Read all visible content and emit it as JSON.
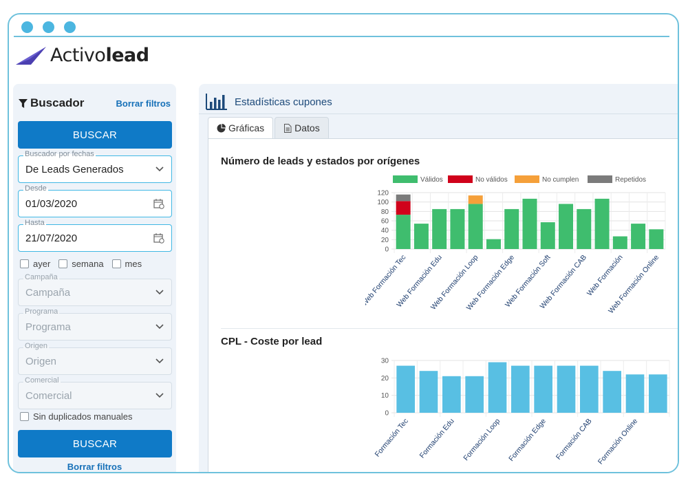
{
  "logo": {
    "light": "Activo",
    "bold": "lead"
  },
  "sidebar": {
    "title": "Buscador",
    "clear_link": "Borrar filtros",
    "search_button": "BUSCAR",
    "date_search": {
      "label": "Buscador por fechas",
      "value": "De Leads Generados"
    },
    "from": {
      "label": "Desde",
      "value": "01/03/2020"
    },
    "to": {
      "label": "Hasta",
      "value": "21/07/2020"
    },
    "quick": [
      "ayer",
      "semana",
      "mes"
    ],
    "campaign": {
      "label": "Campaña",
      "placeholder": "Campaña"
    },
    "program": {
      "label": "Programa",
      "placeholder": "Programa"
    },
    "origin": {
      "label": "Origen",
      "placeholder": "Origen"
    },
    "commercial": {
      "label": "Comercial",
      "placeholder": "Comercial"
    },
    "no_duplicates": "Sin duplicados manuales",
    "search_button_2": "BUSCAR",
    "clear_link_2": "Borrar filtros"
  },
  "main": {
    "title": "Estadísticas cupones",
    "tabs": [
      {
        "label": "Gráficas",
        "icon": "pie-chart-icon"
      },
      {
        "label": "Datos",
        "icon": "document-icon"
      }
    ]
  },
  "colors": {
    "validos": "#3fbd6e",
    "no_validos": "#d0021b",
    "no_cumplen": "#f5a03a",
    "repetidos": "#7b7b7b",
    "coste": "#58bfe3",
    "accent": "#0f7ac7"
  },
  "chart_data": [
    {
      "type": "bar",
      "stacked": true,
      "title": "Número de leads y estados por orígenes",
      "categories": [
        "Web Formación Tec",
        "",
        "Web Formación Edu",
        "",
        "Web Formación Loop",
        "",
        "Web Formación Edge",
        "",
        "Web Formación Soft",
        "",
        "Web Formación CAB",
        "",
        "Web Formación",
        "",
        "Web Formación Online"
      ],
      "series": [
        {
          "name": "Válidos",
          "values": [
            73,
            54,
            85,
            85,
            96,
            21,
            85,
            107,
            57,
            96,
            85,
            107,
            27,
            54,
            42
          ]
        },
        {
          "name": "No válidos",
          "values": [
            29,
            0,
            0,
            0,
            0,
            0,
            0,
            0,
            0,
            0,
            0,
            0,
            0,
            0,
            0
          ]
        },
        {
          "name": "No cumplen",
          "values": [
            0,
            0,
            0,
            0,
            18,
            0,
            0,
            0,
            0,
            0,
            0,
            0,
            0,
            0,
            0
          ]
        },
        {
          "name": "Repetidos",
          "values": [
            14,
            0,
            0,
            0,
            0,
            0,
            0,
            0,
            0,
            0,
            0,
            0,
            0,
            0,
            0
          ]
        }
      ],
      "ylim": [
        0,
        120
      ],
      "yticks": [
        0,
        20,
        40,
        60,
        80,
        100,
        120
      ],
      "legend": "top",
      "grid": true
    },
    {
      "type": "bar",
      "title": "CPL - Coste por lead",
      "categories": [
        "Formación Tec",
        "",
        "Formación Edu",
        "",
        "Formación Loop",
        "",
        "Formación Edge",
        "",
        "Formación CAB",
        "",
        "Formación Online",
        ""
      ],
      "series": [
        {
          "name": "Coste",
          "values": [
            27,
            24,
            21,
            21,
            29,
            27,
            27,
            27,
            27,
            24,
            22,
            22
          ]
        }
      ],
      "ylim": [
        0,
        30
      ],
      "yticks": [
        0,
        10,
        20,
        30
      ],
      "legend": "top",
      "grid": true
    }
  ]
}
